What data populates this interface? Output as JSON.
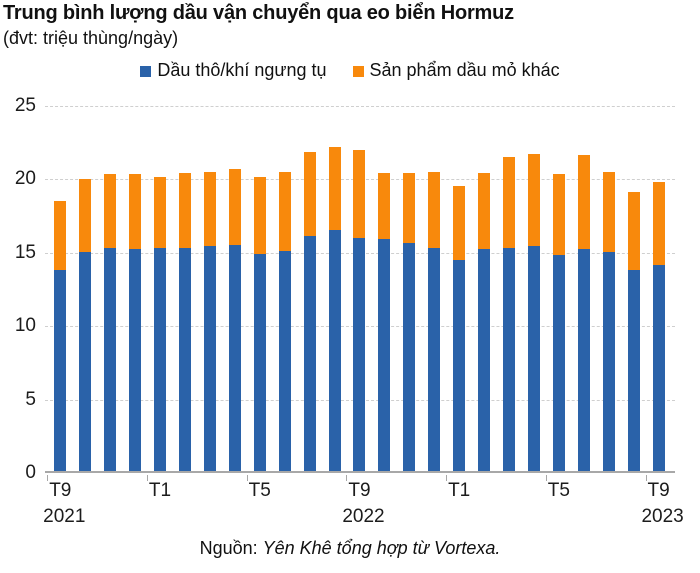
{
  "header": {
    "title": "Trung bình lượng dầu vận chuyển qua eo biển Hormuz",
    "subtitle": "(đvt: triệu thùng/ngày)"
  },
  "legend": {
    "items": [
      {
        "label": "Dầu thô/khí ngưng tụ",
        "color": "#2A62A9"
      },
      {
        "label": "Sản phẩm dầu mỏ khác",
        "color": "#F8890C"
      }
    ]
  },
  "source": {
    "prefix": "Nguồn: ",
    "text": "Yên Khê tổng hợp từ Vortexa."
  },
  "chart_data": {
    "type": "bar",
    "stacked": true,
    "title": "Trung bình lượng dầu vận chuyển qua eo biển Hormuz",
    "subtitle": "(đvt: triệu thùng/ngày)",
    "unit": "triệu thùng/ngày",
    "categories": [
      "T9/2021",
      "T10/2021",
      "T11/2021",
      "T12/2021",
      "T1/2022",
      "T2/2022",
      "T3/2022",
      "T4/2022",
      "T5/2022",
      "T6/2022",
      "T7/2022",
      "T8/2022",
      "T9/2022",
      "T10/2022",
      "T11/2022",
      "T12/2022",
      "T1/2023",
      "T2/2023",
      "T3/2023",
      "T4/2023",
      "T5/2023",
      "T6/2023",
      "T7/2023",
      "T8/2023",
      "T9/2023"
    ],
    "series": [
      {
        "name": "Dầu thô/khí ngưng tụ",
        "color": "#2A62A9",
        "values": [
          13.7,
          14.9,
          15.2,
          15.1,
          15.2,
          15.2,
          15.3,
          15.4,
          14.8,
          15.0,
          16.0,
          16.4,
          15.9,
          15.8,
          15.5,
          15.2,
          14.4,
          15.1,
          15.2,
          15.3,
          14.7,
          15.1,
          14.9,
          13.7,
          14.0
        ]
      },
      {
        "name": "Sản phẩm dầu mỏ khác",
        "color": "#F8890C",
        "values": [
          4.7,
          5.0,
          5.0,
          5.1,
          4.8,
          5.1,
          5.1,
          5.2,
          5.2,
          5.4,
          5.7,
          5.7,
          6.0,
          4.5,
          4.8,
          5.2,
          5.0,
          5.2,
          6.2,
          6.3,
          5.5,
          6.4,
          5.5,
          5.3,
          5.7
        ]
      }
    ],
    "totals": [
      18.4,
      19.9,
      20.2,
      20.2,
      20.0,
      20.3,
      20.4,
      20.6,
      20.0,
      20.4,
      21.7,
      22.1,
      21.9,
      20.3,
      20.3,
      20.4,
      19.4,
      20.3,
      21.4,
      21.6,
      20.2,
      21.5,
      20.4,
      19.0,
      19.7
    ],
    "y_ticks": [
      0,
      5,
      10,
      15,
      20,
      25
    ],
    "ylim": [
      0,
      25
    ],
    "grid": "horizontal-dashed",
    "legend_position": "top",
    "x_tick_labels": [
      {
        "index": 0,
        "month": "T9",
        "year": "2021"
      },
      {
        "index": 4,
        "month": "T1",
        "year": ""
      },
      {
        "index": 8,
        "month": "T5",
        "year": ""
      },
      {
        "index": 12,
        "month": "T9",
        "year": "2022"
      },
      {
        "index": 16,
        "month": "T1",
        "year": ""
      },
      {
        "index": 20,
        "month": "T5",
        "year": ""
      },
      {
        "index": 24,
        "month": "T9",
        "year": "2023"
      }
    ]
  }
}
